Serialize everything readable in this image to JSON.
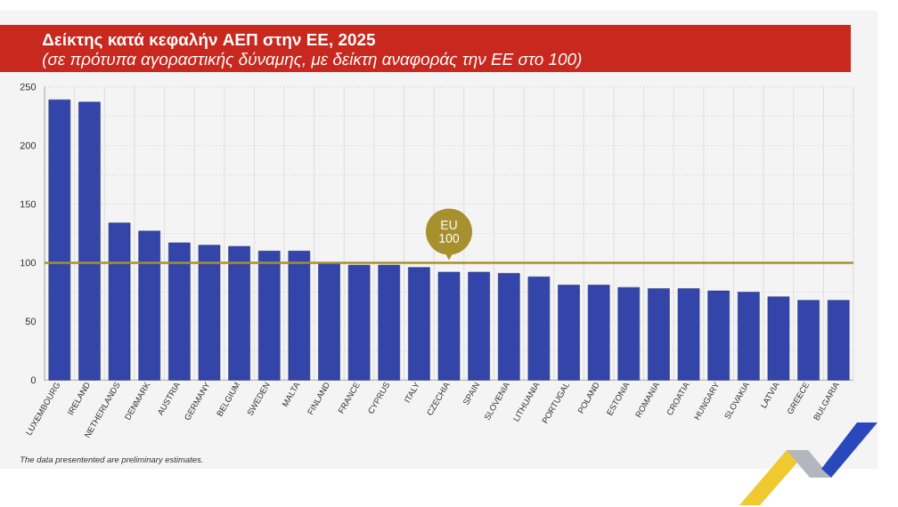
{
  "chart_data": {
    "type": "bar",
    "title": "Δείκτης κατά κεφαλήν ΑΕΠ στην ΕΕ, 2025",
    "subtitle": "(σε πρότυπα αγοραστικής δύναμης, με δείκτη αναφοράς την ΕΕ στο 100)",
    "categories": [
      "LUXEMBOURG",
      "IRELAND",
      "NETHERLANDS",
      "DENMARK",
      "AUSTRIA",
      "GERMANY",
      "BELGIUM",
      "SWEDEN",
      "MALTA",
      "FINLAND",
      "FRANCE",
      "CYPRUS",
      "ITALY",
      "CZECHIA",
      "SPAIN",
      "SLOVENIA",
      "LITHUANIA",
      "PORTUGAL",
      "POLAND",
      "ESTONIA",
      "ROMANIA",
      "CROATIA",
      "HUNGARY",
      "SLOVAKIA",
      "LATVIA",
      "GREECE",
      "BULGARIA"
    ],
    "values": [
      239,
      237,
      134,
      127,
      117,
      115,
      114,
      110,
      110,
      100,
      98,
      98,
      96,
      92,
      92,
      91,
      88,
      81,
      81,
      79,
      78,
      78,
      76,
      75,
      71,
      68,
      68
    ],
    "color": "#3345a9",
    "ylim": [
      0,
      250
    ],
    "yticks": [
      0,
      {
        "value": 25,
        "label": null
      },
      50,
      {
        "value": 75,
        "label": null
      },
      100,
      {
        "value": 125,
        "label": null
      },
      150,
      {
        "value": 175,
        "label": null
      },
      200,
      {
        "value": 225,
        "label": null
      },
      250
    ],
    "grid": true,
    "ref_lines": [
      {
        "axis": "y",
        "value": 100,
        "label": "EU 100",
        "color": "#a8902e"
      }
    ],
    "annotations": [
      "The data presentented are preliminary estimates."
    ]
  }
}
